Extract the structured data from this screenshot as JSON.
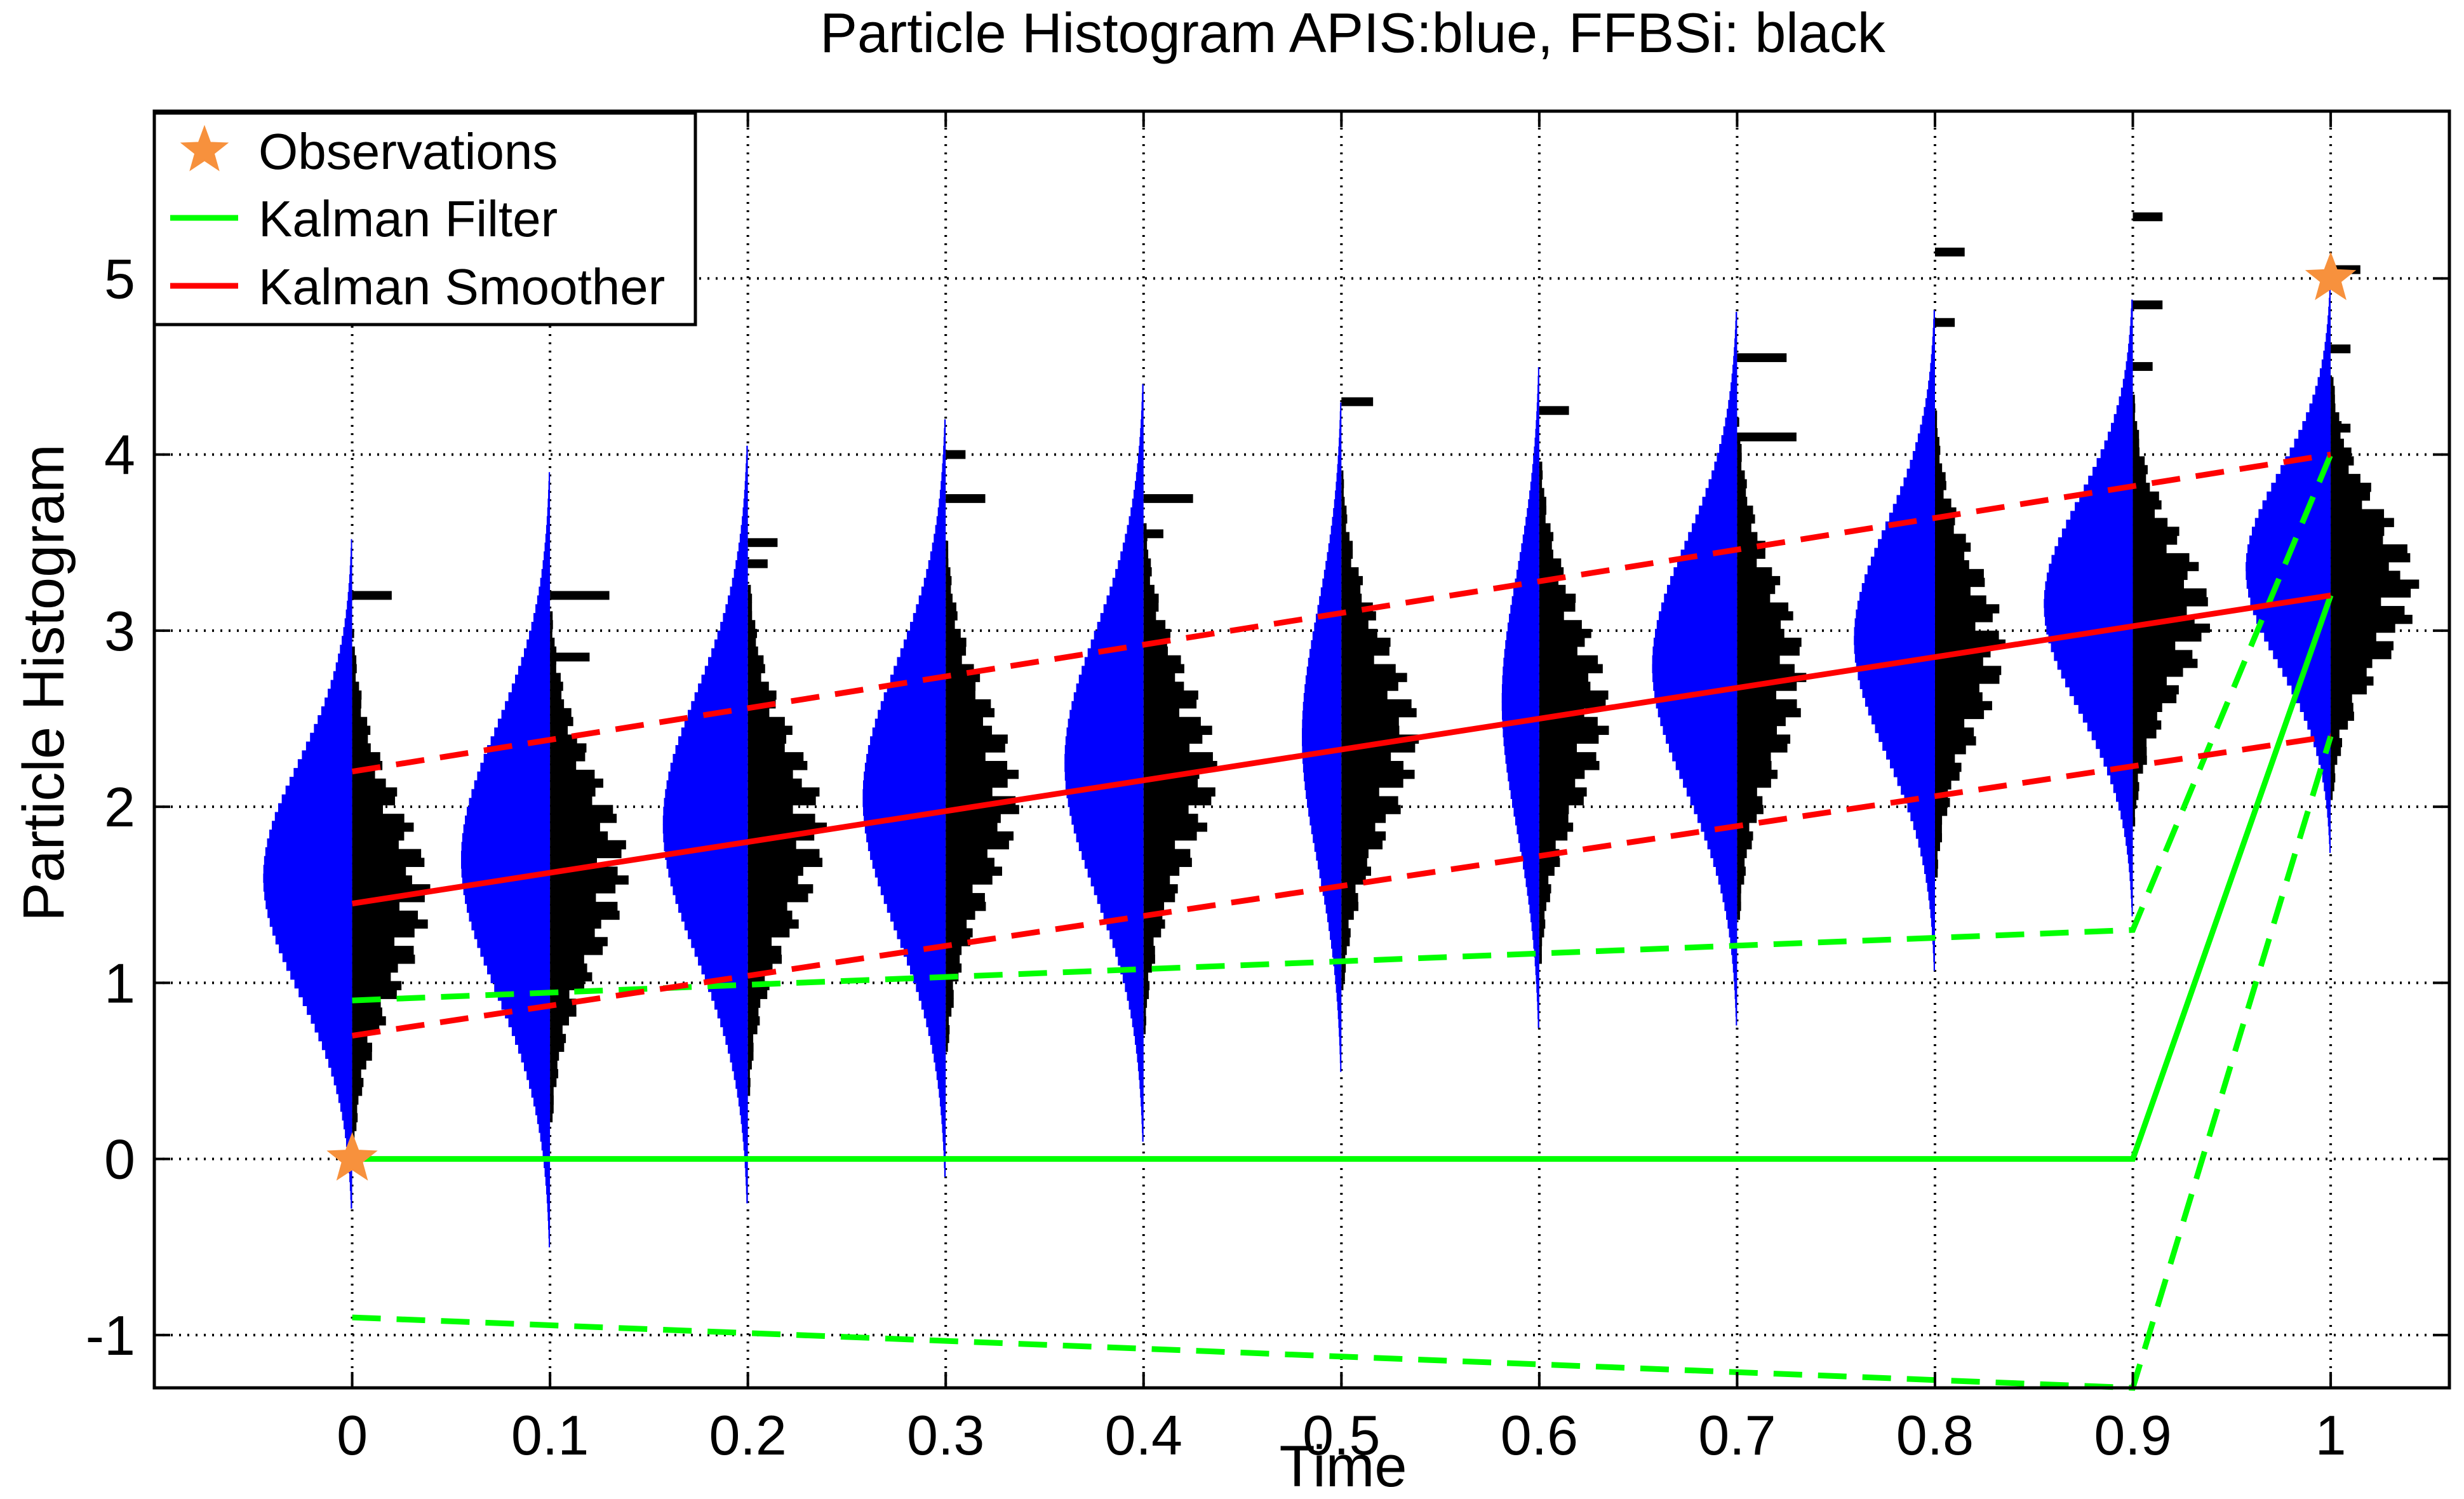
{
  "chart_data": {
    "type": "histogram",
    "title": "Particle Histogram APIS:blue, FFBSi: black",
    "xlabel": "Time",
    "ylabel": "Particle Histogram",
    "xlim": [
      -0.1,
      1.06
    ],
    "ylim": [
      -1.3,
      5.95
    ],
    "x_ticks": [
      "0",
      "0.1",
      "0.2",
      "0.3",
      "0.4",
      "0.5",
      "0.6",
      "0.7",
      "0.8",
      "0.9",
      "1"
    ],
    "y_ticks": [
      "-1",
      "0",
      "1",
      "2",
      "3",
      "4",
      "5"
    ],
    "grid": true,
    "grid_style": "dotted",
    "legend_position": "top-left",
    "legend": [
      {
        "label": "Observations",
        "marker": "star",
        "color": "#f7913d"
      },
      {
        "label": "Kalman Filter",
        "line": "solid",
        "color": "#00ff00"
      },
      {
        "label": "Kalman Smoother",
        "line": "solid",
        "color": "#ff0000"
      }
    ],
    "colors": {
      "apis": "#0000ff",
      "ffbsi": "#000000",
      "filter": "#00ff00",
      "smoother": "#ff0000",
      "observation": "#f7913d"
    },
    "observations": [
      {
        "x": 0,
        "y": 0
      },
      {
        "x": 1,
        "y": 5
      }
    ],
    "kalman_filter": {
      "x": [
        0,
        0.9,
        1
      ],
      "mean": [
        0,
        0,
        3.2
      ],
      "upper": [
        0.9,
        1.3,
        4.0
      ],
      "lower": [
        -0.9,
        -1.3,
        2.4
      ]
    },
    "kalman_smoother": {
      "x": [
        0,
        1
      ],
      "mean": [
        1.45,
        3.2
      ],
      "upper": [
        2.2,
        4.0
      ],
      "lower": [
        0.7,
        2.4
      ]
    },
    "particle_histograms": {
      "times": [
        0,
        0.1,
        0.2,
        0.3,
        0.4,
        0.5,
        0.6,
        0.7,
        0.8,
        0.9,
        1
      ],
      "apis_center": [
        1.6,
        1.7,
        1.9,
        2.05,
        2.25,
        2.4,
        2.6,
        2.8,
        2.95,
        3.15,
        3.35
      ],
      "apis_sd": [
        0.65,
        0.75,
        0.75,
        0.75,
        0.75,
        0.72,
        0.72,
        0.7,
        0.65,
        0.6,
        0.55
      ],
      "apis_peak_width": [
        0.045,
        0.045,
        0.043,
        0.042,
        0.04,
        0.02,
        0.019,
        0.043,
        0.041,
        0.045,
        0.043
      ],
      "ffbsi_center": [
        1.5,
        1.65,
        1.85,
        2.05,
        2.2,
        2.4,
        2.55,
        2.75,
        2.9,
        3.1,
        3.25
      ],
      "ffbsi_sd": [
        0.55,
        0.55,
        0.55,
        0.55,
        0.55,
        0.55,
        0.55,
        0.55,
        0.5,
        0.45,
        0.45
      ],
      "ffbsi_peak_width": [
        0.04,
        0.04,
        0.04,
        0.038,
        0.038,
        0.04,
        0.036,
        0.035,
        0.036,
        0.04,
        0.045
      ],
      "ffbsi_outliers": [
        [
          {
            "y": 3.2,
            "w": 0.02
          }
        ],
        [
          {
            "y": 3.2,
            "w": 0.03
          },
          {
            "y": 2.85,
            "w": 0.02
          }
        ],
        [
          {
            "y": 3.5,
            "w": 0.015
          },
          {
            "y": 3.38,
            "w": 0.01
          }
        ],
        [
          {
            "y": 4.0,
            "w": 0.01
          },
          {
            "y": 3.75,
            "w": 0.02
          }
        ],
        [
          {
            "y": 3.75,
            "w": 0.025
          },
          {
            "y": 3.55,
            "w": 0.01
          }
        ],
        [
          {
            "y": 4.3,
            "w": 0.016
          }
        ],
        [
          {
            "y": 4.25,
            "w": 0.015
          }
        ],
        [
          {
            "y": 4.55,
            "w": 0.025
          },
          {
            "y": 4.1,
            "w": 0.03
          }
        ],
        [
          {
            "y": 5.15,
            "w": 0.015
          },
          {
            "y": 4.75,
            "w": 0.01
          }
        ],
        [
          {
            "y": 5.35,
            "w": 0.015
          },
          {
            "y": 4.85,
            "w": 0.015
          },
          {
            "y": 4.5,
            "w": 0.01
          }
        ],
        [
          {
            "y": 5.05,
            "w": 0.015
          },
          {
            "y": 4.6,
            "w": 0.01
          },
          {
            "y": 4.15,
            "w": 0.01
          }
        ]
      ]
    }
  }
}
